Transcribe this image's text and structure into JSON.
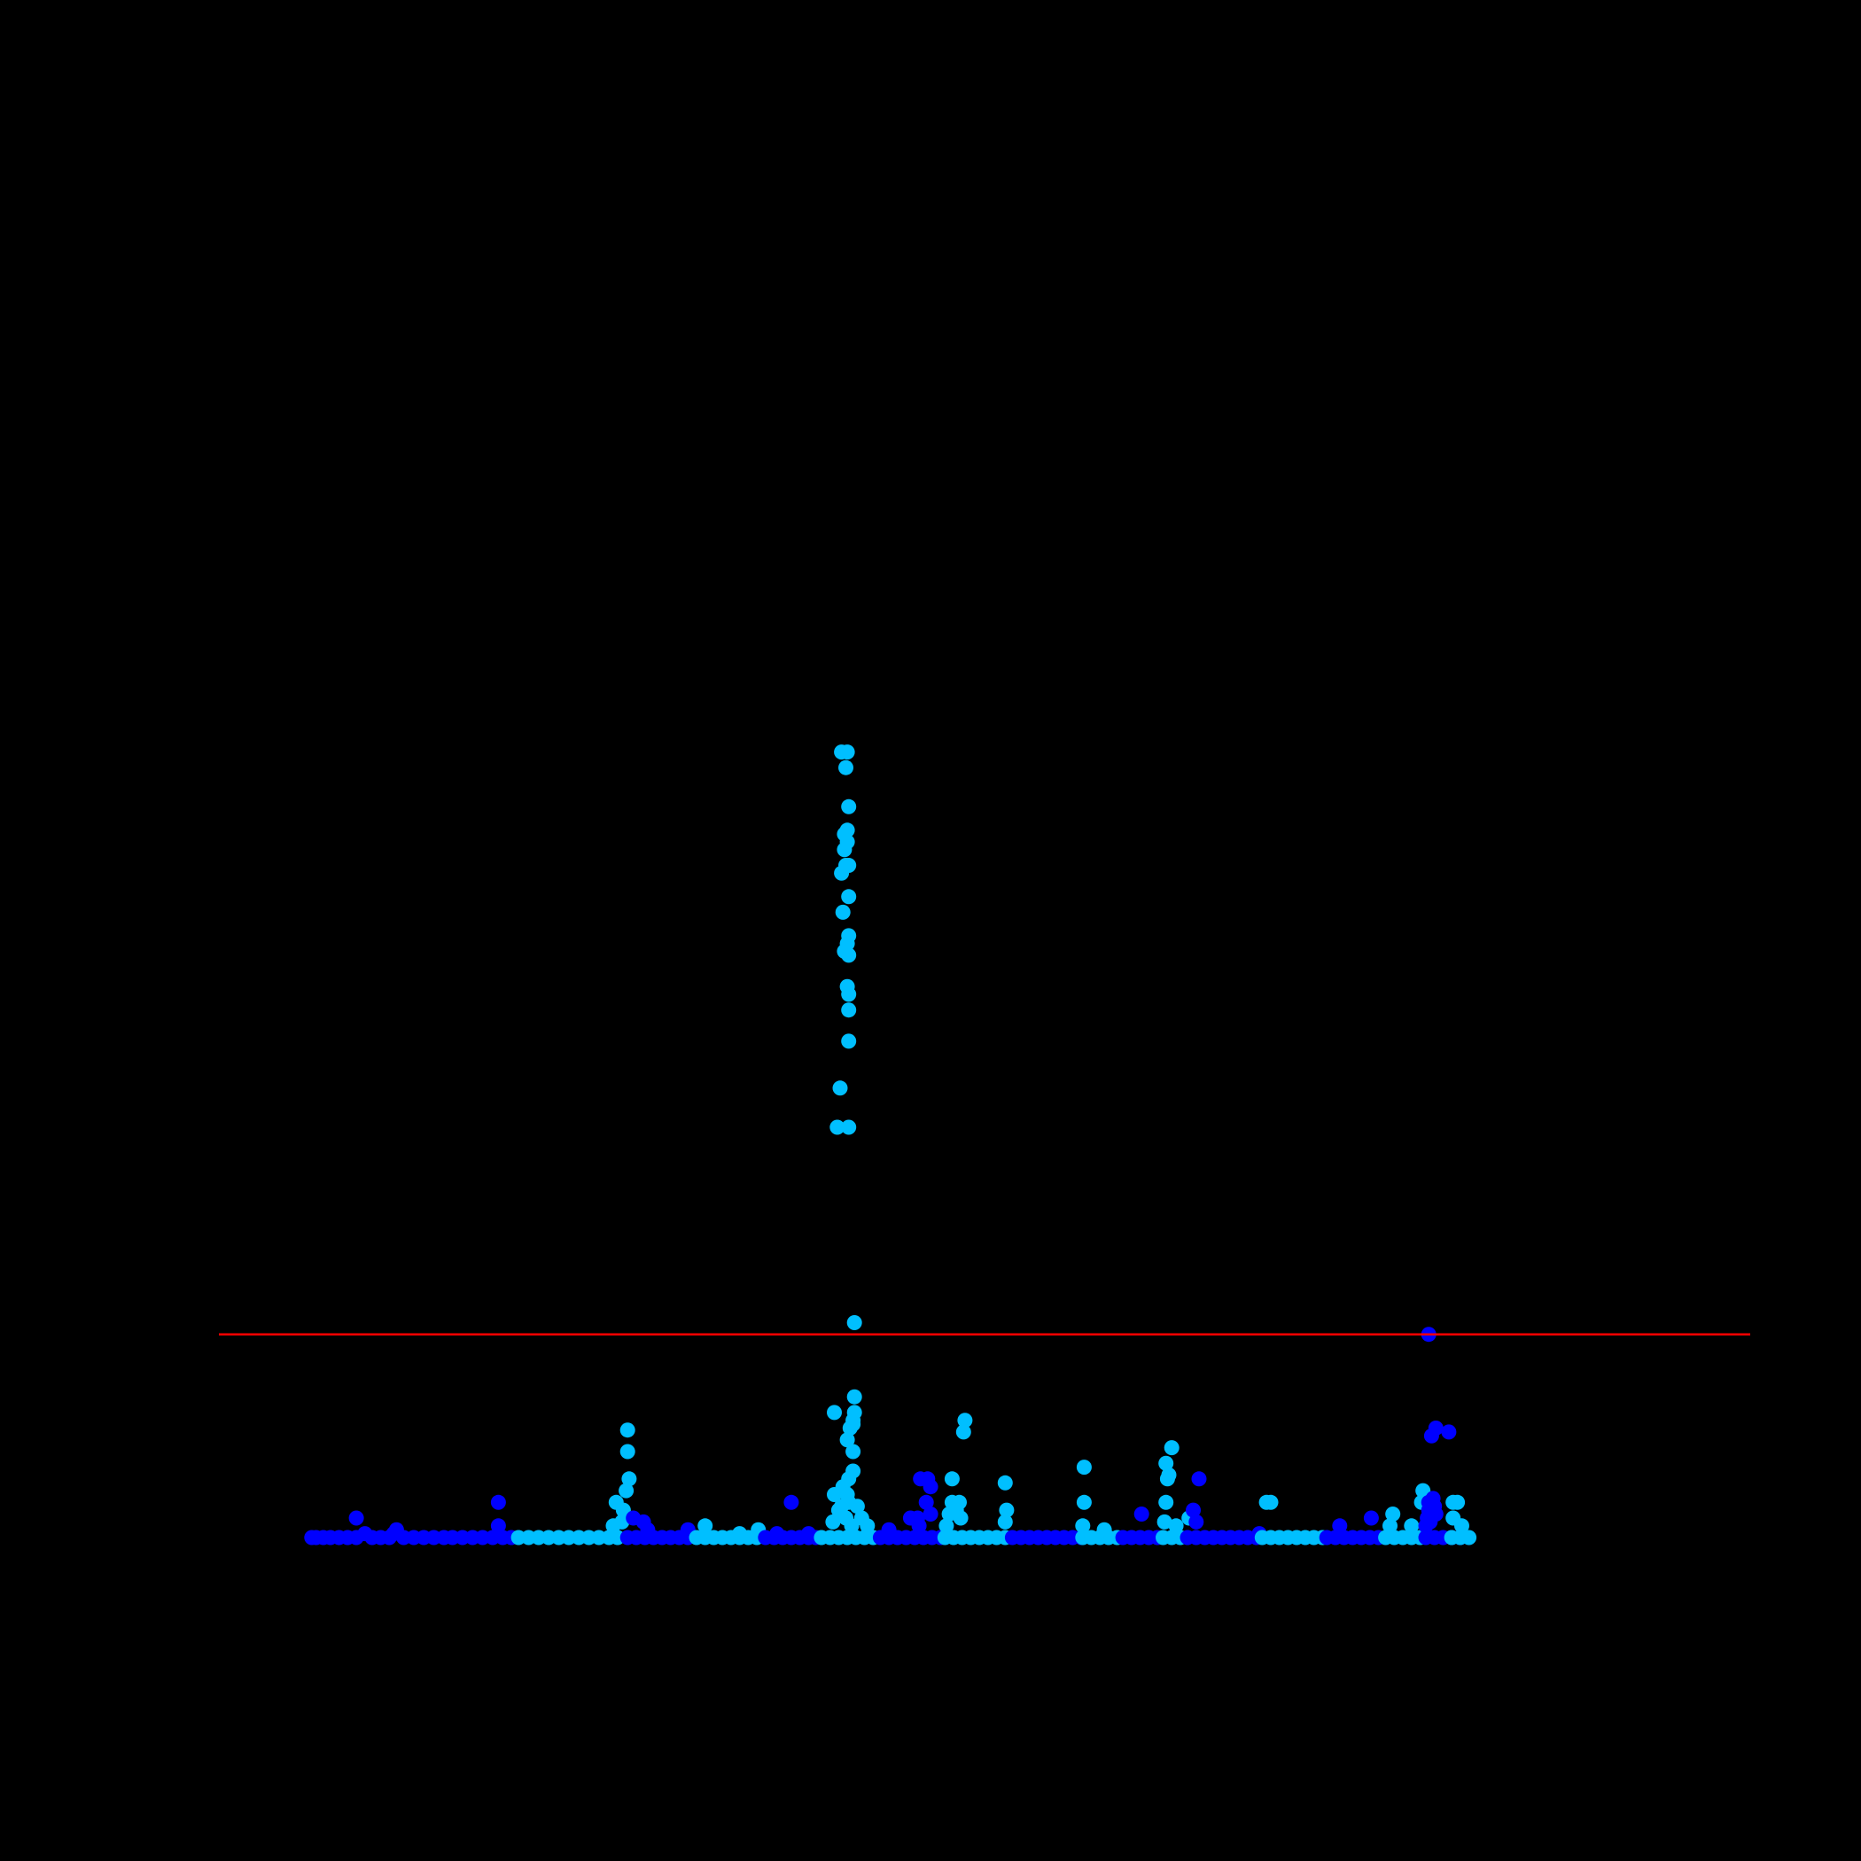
{
  "chart_data": {
    "type": "scatter",
    "title": "",
    "xlabel": "",
    "ylabel": "",
    "background": "#000000",
    "xlim": [
      0,
      100
    ],
    "ylim": [
      0,
      20
    ],
    "grid": false,
    "legend": false,
    "threshold": {
      "y": 5.2,
      "color": "#ff0000"
    },
    "colors": {
      "dark": "#0000ff",
      "light": "#00bfff"
    },
    "series": [
      {
        "name": "",
        "color": "dark",
        "points": [
          [
            3.2,
            0
          ],
          [
            3.5,
            0
          ],
          [
            4.0,
            0
          ],
          [
            4.5,
            0
          ],
          [
            5.1,
            0
          ],
          [
            5.7,
            0
          ],
          [
            6.3,
            0
          ],
          [
            6.9,
            0.1
          ],
          [
            7.4,
            0
          ],
          [
            8.0,
            0
          ],
          [
            8.6,
            0
          ],
          [
            9.1,
            0.2
          ],
          [
            9.6,
            0
          ],
          [
            10.3,
            0
          ],
          [
            11.0,
            0
          ],
          [
            11.7,
            0
          ],
          [
            12.4,
            0
          ],
          [
            13.0,
            0
          ],
          [
            13.7,
            0
          ],
          [
            14.4,
            0
          ],
          [
            15.1,
            0
          ],
          [
            15.8,
            0
          ],
          [
            16.5,
            0
          ],
          [
            17.1,
            0
          ],
          [
            6.3,
            0.5
          ],
          [
            8.9,
            0.1
          ],
          [
            16.2,
            0.9
          ],
          [
            16.2,
            0.3
          ]
        ]
      },
      {
        "name": "",
        "color": "light",
        "points": [
          [
            17.6,
            0
          ],
          [
            18.3,
            0
          ],
          [
            19.0,
            0
          ],
          [
            19.7,
            0
          ],
          [
            20.4,
            0
          ],
          [
            21.1,
            0
          ],
          [
            21.8,
            0
          ],
          [
            22.5,
            0
          ],
          [
            23.2,
            0
          ],
          [
            23.9,
            0
          ],
          [
            24.5,
            0
          ],
          [
            24.2,
            0.3
          ],
          [
            24.4,
            0.9
          ],
          [
            24.9,
            0.7
          ],
          [
            25.1,
            1.2
          ],
          [
            25.3,
            1.5
          ],
          [
            25.2,
            2.2
          ],
          [
            25.2,
            2.75
          ],
          [
            24.8,
            0.4
          ]
        ]
      },
      {
        "name": "",
        "color": "dark",
        "points": [
          [
            25.2,
            0
          ],
          [
            25.8,
            0
          ],
          [
            26.4,
            0
          ],
          [
            27.0,
            0
          ],
          [
            27.6,
            0
          ],
          [
            28.2,
            0
          ],
          [
            28.8,
            0
          ],
          [
            29.4,
            0
          ],
          [
            25.6,
            0.5
          ],
          [
            26.3,
            0.4
          ],
          [
            26.6,
            0.2
          ],
          [
            29.4,
            0.2
          ]
        ]
      },
      {
        "name": "",
        "color": "light",
        "points": [
          [
            30.0,
            0
          ],
          [
            30.6,
            0
          ],
          [
            31.2,
            0
          ],
          [
            31.8,
            0
          ],
          [
            32.4,
            0
          ],
          [
            33.0,
            0
          ],
          [
            33.6,
            0
          ],
          [
            34.2,
            0
          ],
          [
            30.6,
            0.3
          ],
          [
            33.0,
            0.1
          ],
          [
            34.3,
            0.2
          ]
        ]
      },
      {
        "name": "",
        "color": "dark",
        "points": [
          [
            34.8,
            0
          ],
          [
            35.4,
            0
          ],
          [
            36.0,
            0
          ],
          [
            36.6,
            0
          ],
          [
            37.2,
            0
          ],
          [
            37.8,
            0
          ],
          [
            38.3,
            0
          ],
          [
            35.6,
            0.1
          ],
          [
            36.6,
            0.9
          ],
          [
            37.8,
            0.1
          ]
        ]
      },
      {
        "name": "",
        "color": "light",
        "points": [
          [
            38.7,
            0
          ],
          [
            39.3,
            0
          ],
          [
            39.9,
            0
          ],
          [
            40.5,
            0
          ],
          [
            41.1,
            0
          ],
          [
            41.7,
            0
          ],
          [
            42.3,
            0
          ],
          [
            39.5,
            0.4
          ],
          [
            39.6,
            1.1
          ],
          [
            39.9,
            0.7
          ],
          [
            40.1,
            0.8
          ],
          [
            40.2,
            1.3
          ],
          [
            40.4,
            0.5
          ],
          [
            40.5,
            1.1
          ],
          [
            40.6,
            0.9
          ],
          [
            40.8,
            0.3
          ],
          [
            40.6,
            1.5
          ],
          [
            40.9,
            1.7
          ],
          [
            40.9,
            2.2
          ],
          [
            40.5,
            2.5
          ],
          [
            40.7,
            2.8
          ],
          [
            40.9,
            2.9
          ],
          [
            40.9,
            3.0
          ],
          [
            41.0,
            3.2
          ],
          [
            41.0,
            3.6
          ],
          [
            39.6,
            3.2
          ],
          [
            41.2,
            0.8
          ],
          [
            41.5,
            0.5
          ],
          [
            41.9,
            0.3
          ],
          [
            41.0,
            5.5
          ],
          [
            39.8,
            10.5
          ],
          [
            40.6,
            10.5
          ],
          [
            40.0,
            11.5
          ],
          [
            40.6,
            12.7
          ],
          [
            40.6,
            13.5
          ],
          [
            40.6,
            13.9
          ],
          [
            40.5,
            14.1
          ],
          [
            40.6,
            14.9
          ],
          [
            40.3,
            15.0
          ],
          [
            40.5,
            15.2
          ],
          [
            40.6,
            15.4
          ],
          [
            40.2,
            16.0
          ],
          [
            40.6,
            16.4
          ],
          [
            40.1,
            17.0
          ],
          [
            40.4,
            17.2
          ],
          [
            40.6,
            17.2
          ],
          [
            40.3,
            17.6
          ],
          [
            40.5,
            17.8
          ],
          [
            40.3,
            18.0
          ],
          [
            40.5,
            18.1
          ],
          [
            40.6,
            18.7
          ],
          [
            40.4,
            19.7
          ],
          [
            40.5,
            20.1
          ],
          [
            40.1,
            20.1
          ]
        ]
      },
      {
        "name": "",
        "color": "dark",
        "points": [
          [
            42.8,
            0
          ],
          [
            43.4,
            0
          ],
          [
            44.0,
            0
          ],
          [
            44.6,
            0
          ],
          [
            45.2,
            0
          ],
          [
            45.8,
            0
          ],
          [
            46.4,
            0
          ],
          [
            47.0,
            0
          ],
          [
            43.4,
            0.2
          ],
          [
            44.9,
            0.5
          ],
          [
            45.4,
            0.5
          ],
          [
            45.6,
            1.5
          ],
          [
            46.1,
            1.5
          ],
          [
            46.3,
            1.3
          ],
          [
            46.0,
            0.9
          ],
          [
            46.3,
            0.6
          ],
          [
            45.5,
            0.3
          ]
        ]
      },
      {
        "name": "",
        "color": "light",
        "points": [
          [
            47.3,
            0
          ],
          [
            47.9,
            0
          ],
          [
            48.5,
            0
          ],
          [
            49.1,
            0
          ],
          [
            49.7,
            0
          ],
          [
            50.3,
            0
          ],
          [
            50.9,
            0
          ],
          [
            51.5,
            0
          ],
          [
            47.4,
            0.3
          ],
          [
            47.6,
            0.6
          ],
          [
            47.8,
            0.9
          ],
          [
            47.8,
            1.5
          ],
          [
            48.1,
            0.7
          ],
          [
            48.3,
            0.9
          ],
          [
            48.4,
            0.5
          ],
          [
            48.6,
            2.7
          ],
          [
            48.7,
            3.0
          ],
          [
            51.5,
            1.4
          ],
          [
            51.6,
            0.7
          ],
          [
            51.5,
            0.4
          ]
        ]
      },
      {
        "name": "",
        "color": "dark",
        "points": [
          [
            52.0,
            0
          ],
          [
            52.6,
            0
          ],
          [
            53.2,
            0
          ],
          [
            53.8,
            0
          ],
          [
            54.4,
            0
          ],
          [
            55.0,
            0
          ],
          [
            55.6,
            0
          ],
          [
            56.2,
            0
          ],
          [
            56.8,
            0
          ]
        ]
      },
      {
        "name": "",
        "color": "light",
        "points": [
          [
            56.9,
            0
          ],
          [
            57.5,
            0
          ],
          [
            58.1,
            0
          ],
          [
            58.7,
            0
          ],
          [
            59.3,
            0
          ],
          [
            56.9,
            0.3
          ],
          [
            57.0,
            0.9
          ],
          [
            57.0,
            1.8
          ],
          [
            58.4,
            0.2
          ]
        ]
      },
      {
        "name": "",
        "color": "dark",
        "points": [
          [
            59.7,
            0
          ],
          [
            60.3,
            0
          ],
          [
            60.9,
            0
          ],
          [
            61.5,
            0
          ],
          [
            62.1,
            0
          ],
          [
            61.0,
            0.6
          ]
        ]
      },
      {
        "name": "",
        "color": "light",
        "points": [
          [
            62.5,
            0
          ],
          [
            63.1,
            0
          ],
          [
            63.7,
            0
          ],
          [
            62.6,
            0.4
          ],
          [
            62.7,
            0.9
          ],
          [
            62.8,
            1.5
          ],
          [
            62.9,
            1.6
          ],
          [
            62.7,
            1.9
          ],
          [
            63.1,
            2.3
          ],
          [
            63.4,
            0.3
          ],
          [
            64.3,
            0.5
          ]
        ]
      },
      {
        "name": "",
        "color": "dark",
        "points": [
          [
            64.2,
            0
          ],
          [
            64.8,
            0
          ],
          [
            65.4,
            0
          ],
          [
            66.0,
            0
          ],
          [
            66.6,
            0
          ],
          [
            67.2,
            0
          ],
          [
            67.8,
            0
          ],
          [
            68.4,
            0
          ],
          [
            69.0,
            0
          ],
          [
            64.6,
            0.7
          ],
          [
            64.8,
            0.4
          ],
          [
            65.0,
            1.5
          ],
          [
            69.2,
            0.1
          ]
        ]
      },
      {
        "name": "",
        "color": "light",
        "points": [
          [
            69.4,
            0
          ],
          [
            70.0,
            0
          ],
          [
            70.6,
            0
          ],
          [
            71.2,
            0
          ],
          [
            71.8,
            0
          ],
          [
            72.4,
            0
          ],
          [
            73.0,
            0
          ],
          [
            73.6,
            0
          ],
          [
            69.7,
            0.9
          ],
          [
            70.0,
            0.9
          ]
        ]
      },
      {
        "name": "",
        "color": "dark",
        "points": [
          [
            73.9,
            0
          ],
          [
            74.5,
            0
          ],
          [
            75.1,
            0
          ],
          [
            75.7,
            0
          ],
          [
            76.3,
            0
          ],
          [
            76.9,
            0
          ],
          [
            77.5,
            0
          ],
          [
            74.8,
            0.3
          ],
          [
            77.0,
            0.5
          ]
        ]
      },
      {
        "name": "",
        "color": "light",
        "points": [
          [
            78.0,
            0
          ],
          [
            78.6,
            0
          ],
          [
            79.2,
            0
          ],
          [
            79.8,
            0
          ],
          [
            80.4,
            0
          ],
          [
            78.3,
            0.3
          ],
          [
            78.5,
            0.6
          ],
          [
            79.8,
            0.3
          ],
          [
            80.6,
            1.2
          ],
          [
            80.5,
            0.9
          ]
        ]
      },
      {
        "name": "",
        "color": "dark",
        "points": [
          [
            80.8,
            0
          ],
          [
            81.4,
            0
          ],
          [
            82.0,
            0
          ],
          [
            82.6,
            0
          ],
          [
            83.2,
            0
          ],
          [
            80.8,
            0.3
          ],
          [
            80.9,
            0.5
          ],
          [
            81.0,
            0.7
          ],
          [
            81.1,
            0.4
          ],
          [
            81.3,
            1.0
          ],
          [
            81.0,
            0.9
          ],
          [
            81.4,
            0.8
          ],
          [
            81.5,
            0.6
          ],
          [
            81.2,
            2.6
          ],
          [
            81.5,
            2.8
          ],
          [
            82.4,
            2.7
          ],
          [
            81.0,
            5.2
          ]
        ]
      },
      {
        "name": "",
        "color": "light",
        "points": [
          [
            82.6,
            0
          ],
          [
            83.2,
            0
          ],
          [
            83.8,
            0
          ],
          [
            82.7,
            0.9
          ],
          [
            82.7,
            0.5
          ],
          [
            83.0,
            0.9
          ],
          [
            83.3,
            0.3
          ]
        ]
      }
    ]
  }
}
